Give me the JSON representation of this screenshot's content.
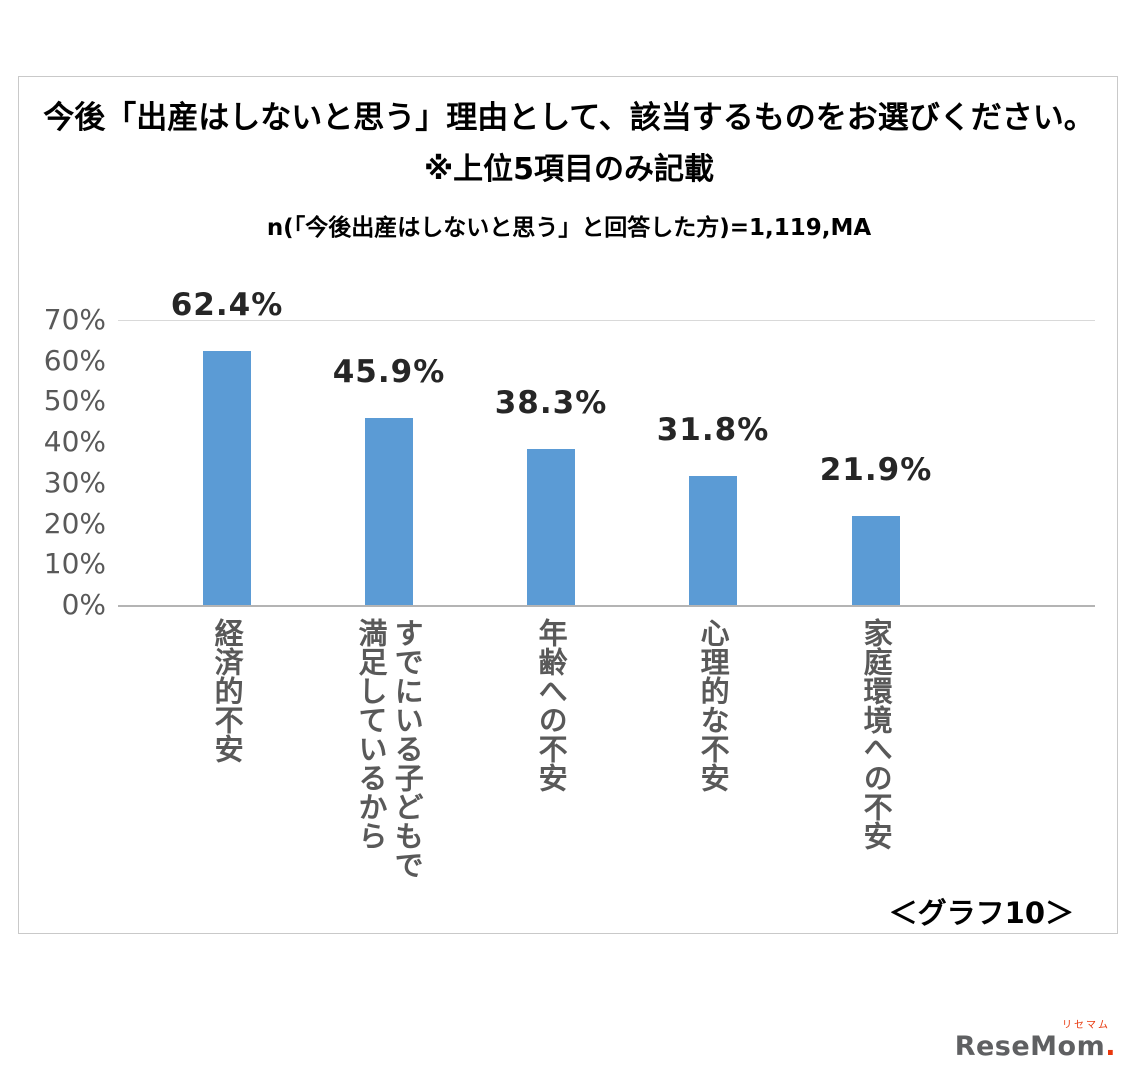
{
  "chart_box": {
    "title_line1": "今後「出産はしないと思う」理由として、該当するものをお選びください。",
    "title_line2": "※上位5項目のみ記載",
    "subtitle": "n(「今後出産はしないと思う」と回答した方)=1,119,MA",
    "caption": "＜グラフ10＞"
  },
  "chart_data": {
    "type": "bar",
    "title": "今後「出産はしないと思う」理由として、該当するものをお選びください。※上位5項目のみ記載",
    "subtitle": "n(「今後出産はしないと思う」と回答した方)=1,119,MA",
    "categories": [
      "経済的不安",
      "すでにいる子どもで満足しているから",
      "年齢への不安",
      "心理的な不安",
      "家庭環境への不安"
    ],
    "values": [
      62.4,
      45.9,
      38.3,
      31.8,
      21.9
    ],
    "data_labels": [
      "62.4%",
      "45.9%",
      "38.3%",
      "31.8%",
      "21.9%"
    ],
    "xlabel": "",
    "ylabel": "",
    "ylim": [
      0,
      70
    ],
    "yticks": [
      "70%",
      "60%",
      "50%",
      "40%",
      "30%",
      "20%",
      "10%",
      "0%"
    ],
    "grid": "topline-and-baseline-only",
    "legend": "none",
    "bar_color": "#5b9bd5",
    "caption": "＜グラフ10＞"
  },
  "logo": {
    "ruby": "リセマム",
    "text": "ReseMom",
    "dot": ".",
    "text_color": "#5f6062",
    "accent_color": "#e8380d"
  }
}
